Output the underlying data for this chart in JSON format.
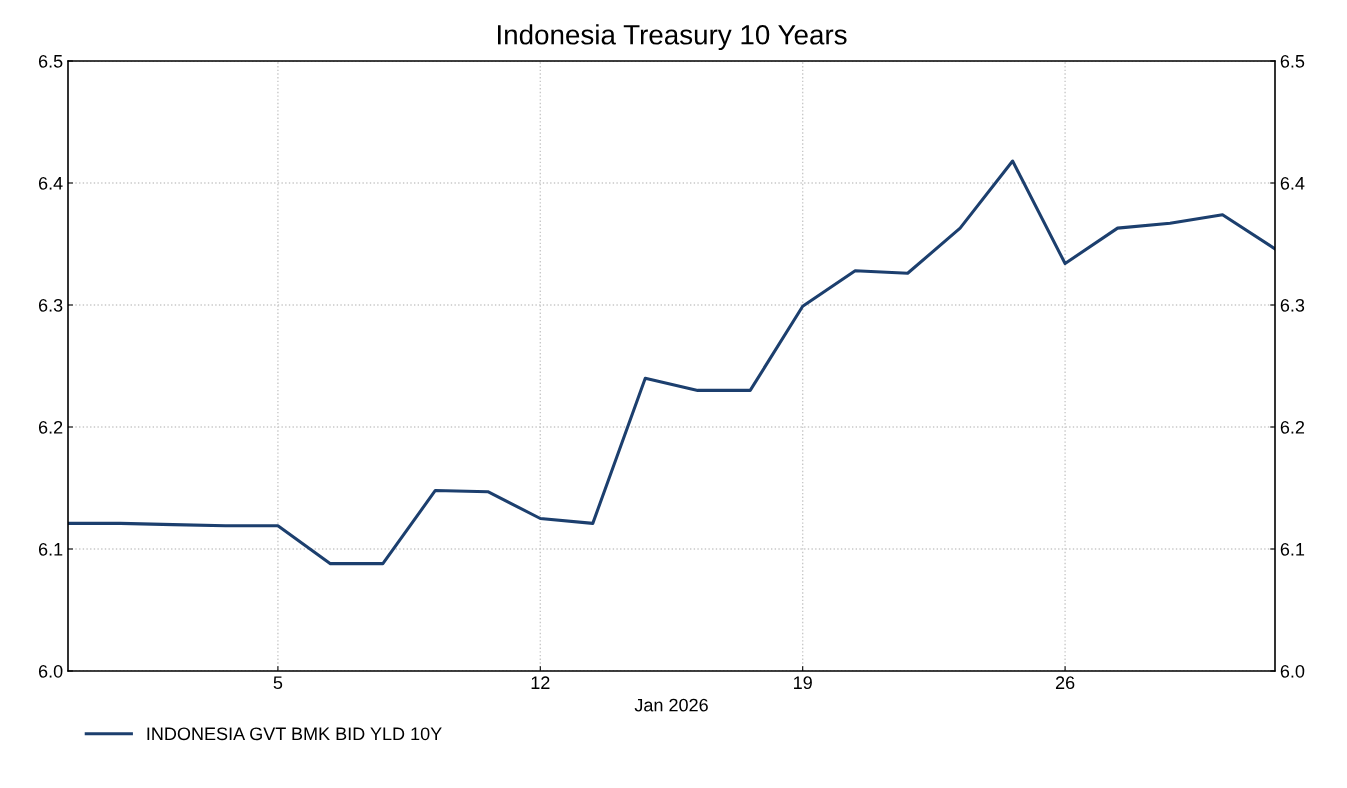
{
  "chart_data": {
    "type": "line",
    "title": "Indonesia Treasury 10 Years",
    "xlabel": "Jan 2026",
    "categories": [
      null,
      null,
      null,
      null,
      "5",
      null,
      null,
      null,
      null,
      "12",
      null,
      null,
      null,
      null,
      "19",
      null,
      null,
      null,
      null,
      "26",
      null,
      null,
      null,
      null
    ],
    "series": [
      {
        "name": "INDONESIA GVT BMK BID YLD 10Y",
        "color": "#1c3f6e",
        "values": [
          6.121,
          6.121,
          6.12,
          6.119,
          6.119,
          6.088,
          6.088,
          6.148,
          6.147,
          6.125,
          6.121,
          6.24,
          6.23,
          6.23,
          6.299,
          6.328,
          6.326,
          6.363,
          6.418,
          6.334,
          6.363,
          6.367,
          6.374,
          6.346
        ]
      }
    ],
    "ylim": [
      6.0,
      6.5
    ],
    "yticks": [
      {
        "value": 6.0,
        "label": "6.0"
      },
      {
        "value": 6.1,
        "label": "6.1"
      },
      {
        "value": 6.2,
        "label": "6.2"
      },
      {
        "value": 6.3,
        "label": "6.3"
      },
      {
        "value": 6.4,
        "label": "6.4"
      },
      {
        "value": 6.5,
        "label": "6.5"
      }
    ],
    "y2lim": [
      6.0,
      6.5
    ],
    "y2ticks": [
      {
        "value": 6.0,
        "label": "6.0"
      },
      {
        "value": 6.1,
        "label": "6.1"
      },
      {
        "value": 6.2,
        "label": "6.2"
      },
      {
        "value": 6.3,
        "label": "6.3"
      },
      {
        "value": 6.4,
        "label": "6.4"
      },
      {
        "value": 6.5,
        "label": "6.5"
      }
    ],
    "grid": true,
    "legend": "bottom left",
    "line_style": "solid"
  }
}
